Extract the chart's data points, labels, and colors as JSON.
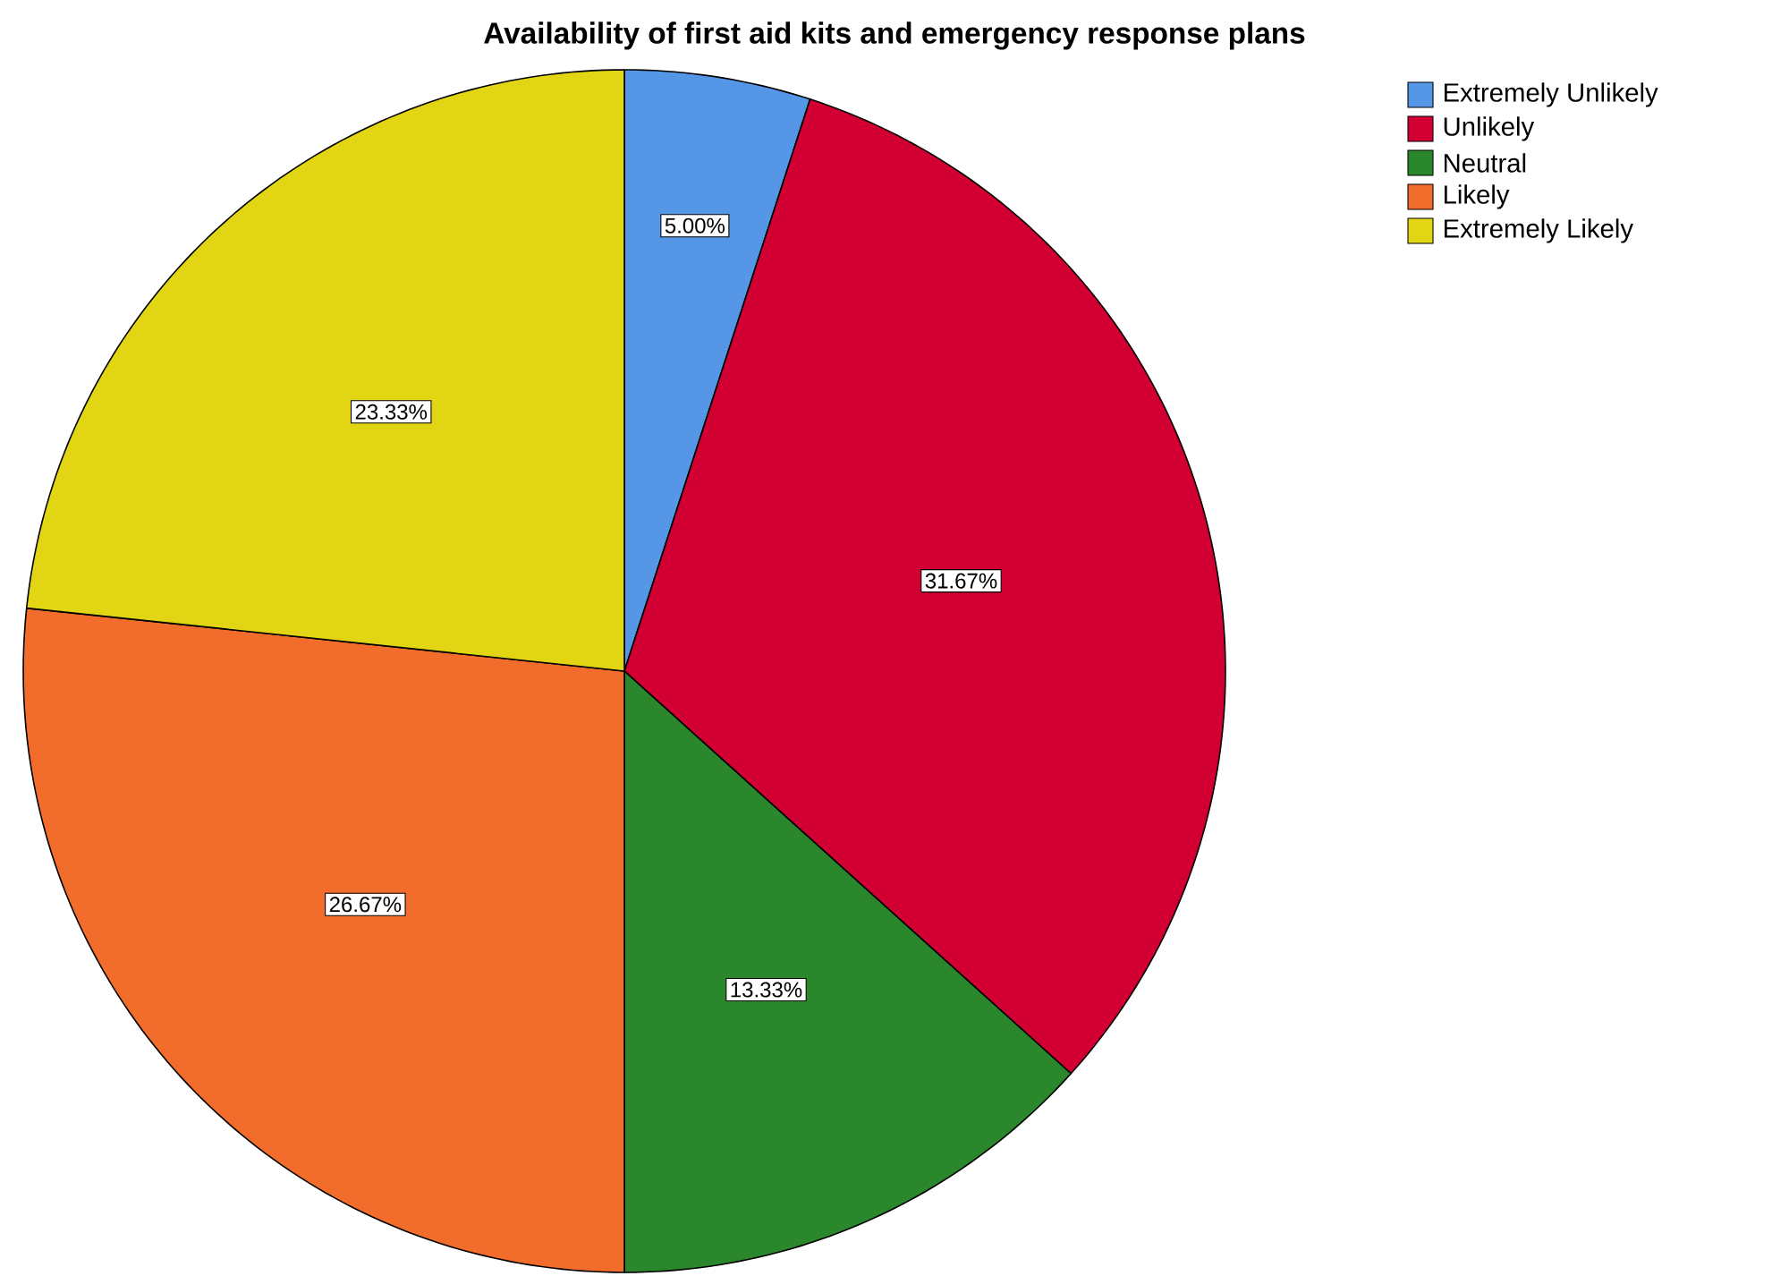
{
  "chart_data": {
    "type": "pie",
    "title": "Availability of first aid kits and emergency response plans",
    "categories": [
      "Extremely Unlikely",
      "Unlikely",
      "Neutral",
      "Likely",
      "Extremely Likely"
    ],
    "values": [
      5.0,
      31.67,
      13.33,
      26.67,
      23.33
    ],
    "colors": [
      "#5596e6",
      "#d20032",
      "#2b872b",
      "#f26c2b",
      "#e2d614"
    ],
    "value_labels": [
      "5.00%",
      "31.67%",
      "13.33%",
      "26.67%",
      "23.33%"
    ],
    "legend": "top right"
  }
}
